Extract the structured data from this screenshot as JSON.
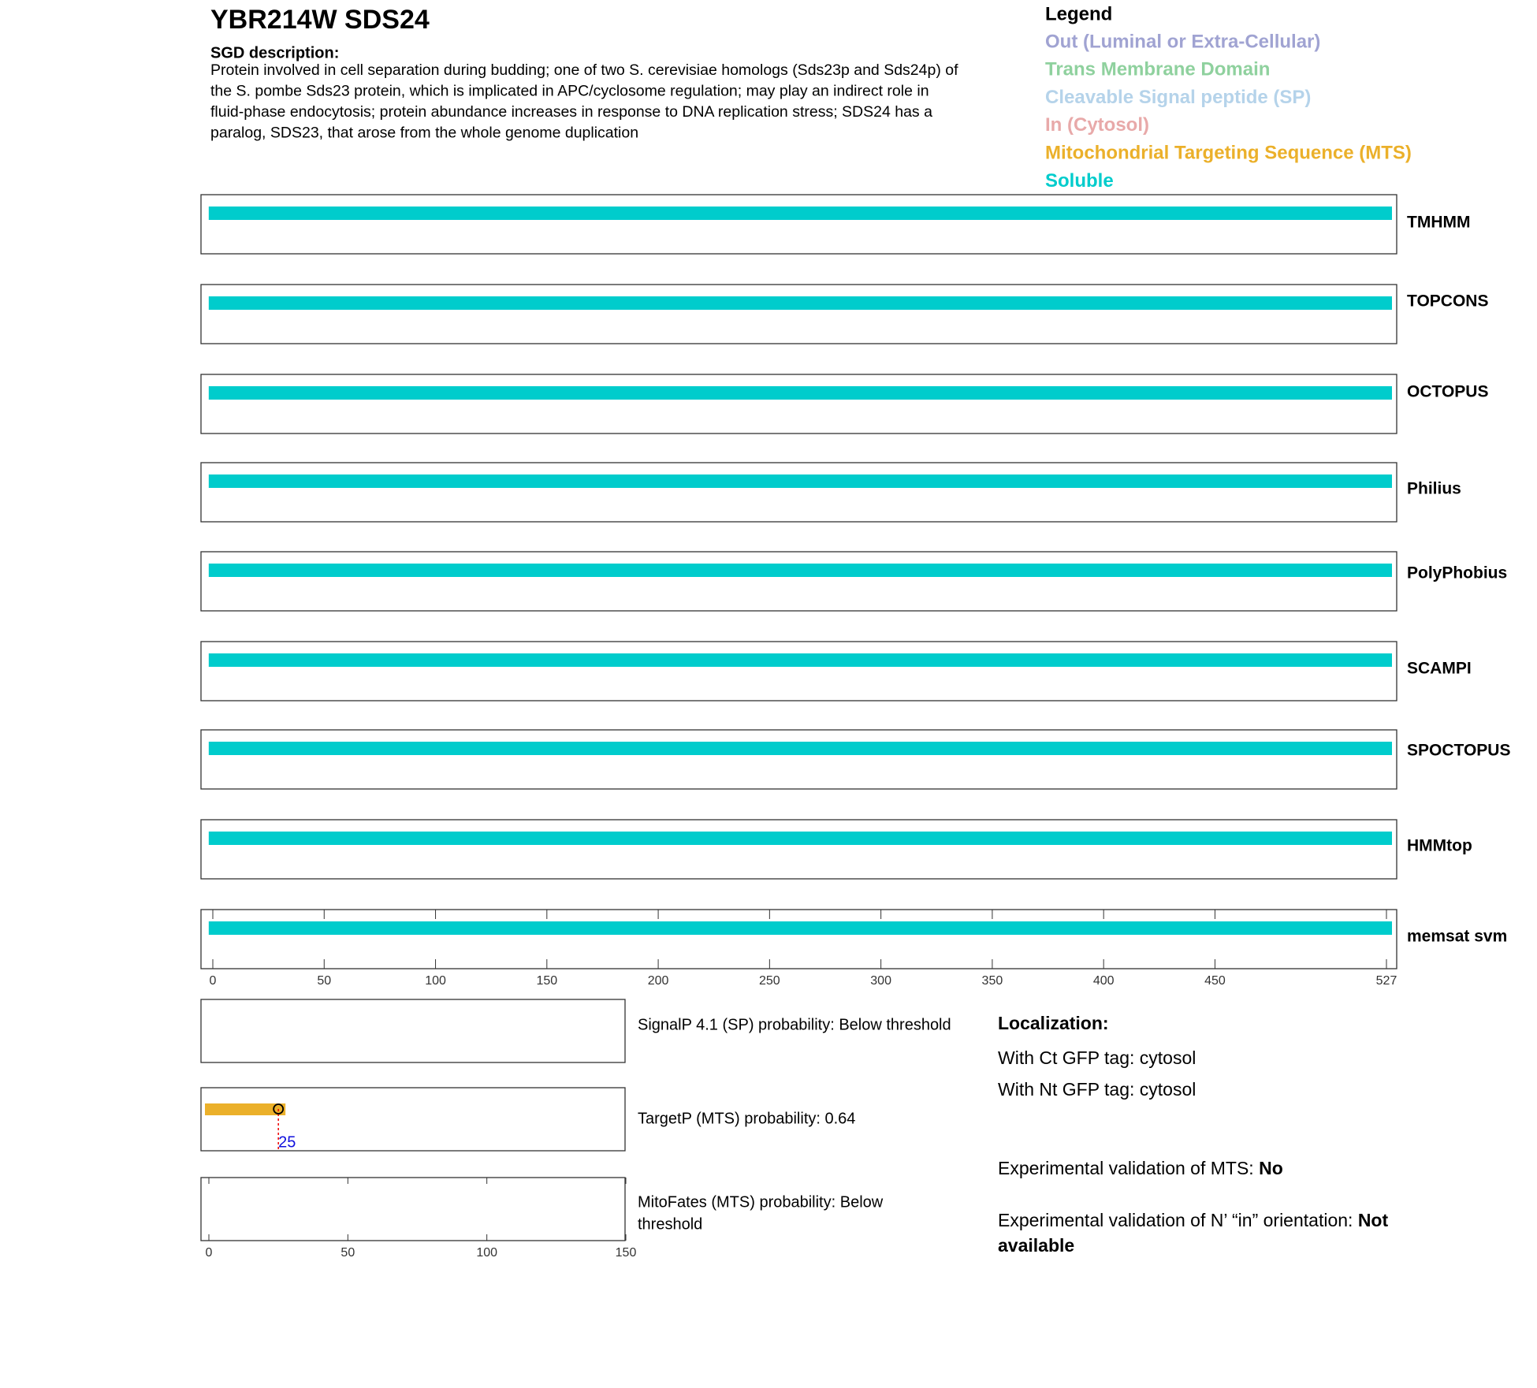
{
  "header": {
    "title": "YBR214W  SDS24",
    "description_label": "SGD description:",
    "description_lines": [
      "Protein involved in cell separation during budding; one of two S. cerevisiae homologs (Sds23p and Sds24p) of",
      "the S. pombe Sds23 protein, which is implicated in APC/cyclosome regulation; may play an indirect role in",
      "fluid-phase endocytosis; protein abundance increases in response to DNA replication stress; SDS24 has a",
      "paralog, SDS23, that arose from the whole genome duplication"
    ]
  },
  "legend": {
    "title": "Legend",
    "items": [
      {
        "label": "Out (Luminal or Extra-Cellular)",
        "color": "#a0a3d2"
      },
      {
        "label": "Trans Membrane Domain",
        "color": "#8fd19e"
      },
      {
        "label": "Cleavable Signal peptide (SP)",
        "color": "#b5d3ea"
      },
      {
        "label": "In (Cytosol)",
        "color": "#e8a9a9"
      },
      {
        "label": "Mitochondrial Targeting Sequence (MTS)",
        "color": "#ebb02a"
      },
      {
        "label": "Soluble",
        "color": "#00cccc"
      }
    ]
  },
  "tracks": {
    "xlim": [
      0,
      527
    ],
    "xticks": [
      0,
      50,
      100,
      150,
      200,
      250,
      300,
      350,
      400,
      450,
      527
    ],
    "rows": [
      {
        "name": "TMHMM",
        "start": 1,
        "end": 527,
        "color": "#00cccc"
      },
      {
        "name": "TOPCONS",
        "start": 1,
        "end": 527,
        "color": "#00cccc"
      },
      {
        "name": "OCTOPUS",
        "start": 1,
        "end": 527,
        "color": "#00cccc"
      },
      {
        "name": "Philius",
        "start": 1,
        "end": 527,
        "color": "#00cccc"
      },
      {
        "name": "PolyPhobius",
        "start": 1,
        "end": 527,
        "color": "#00cccc"
      },
      {
        "name": "SCAMPI",
        "start": 1,
        "end": 527,
        "color": "#00cccc"
      },
      {
        "name": "SPOCTOPUS",
        "start": 1,
        "end": 527,
        "color": "#00cccc"
      },
      {
        "name": "HMMtop",
        "start": 1,
        "end": 527,
        "color": "#00cccc"
      },
      {
        "name": "memsat svm",
        "start": 1,
        "end": 527,
        "color": "#00cccc"
      }
    ]
  },
  "panels": {
    "xlim": [
      0,
      150
    ],
    "xticks": [
      0,
      50,
      100,
      150
    ],
    "signalp": {
      "text": "SignalP 4.1 (SP) probability: Below threshold"
    },
    "targetp": {
      "text": "TargetP (MTS) probability: 0.64",
      "cleavage": 25,
      "color": "#ebb02a"
    },
    "mitofates": {
      "text_lines": [
        "MitoFates (MTS) probability: Below",
        "threshold"
      ]
    }
  },
  "localization": {
    "title": "Localization:",
    "lines": [
      "With Ct GFP tag: cytosol",
      "With Nt GFP tag: cytosol"
    ],
    "validations": [
      {
        "label": "Experimental validation of MTS: ",
        "value": "No"
      },
      {
        "label": "Experimental validation of N’ “in” orientation: ",
        "value": "Not available"
      }
    ]
  }
}
